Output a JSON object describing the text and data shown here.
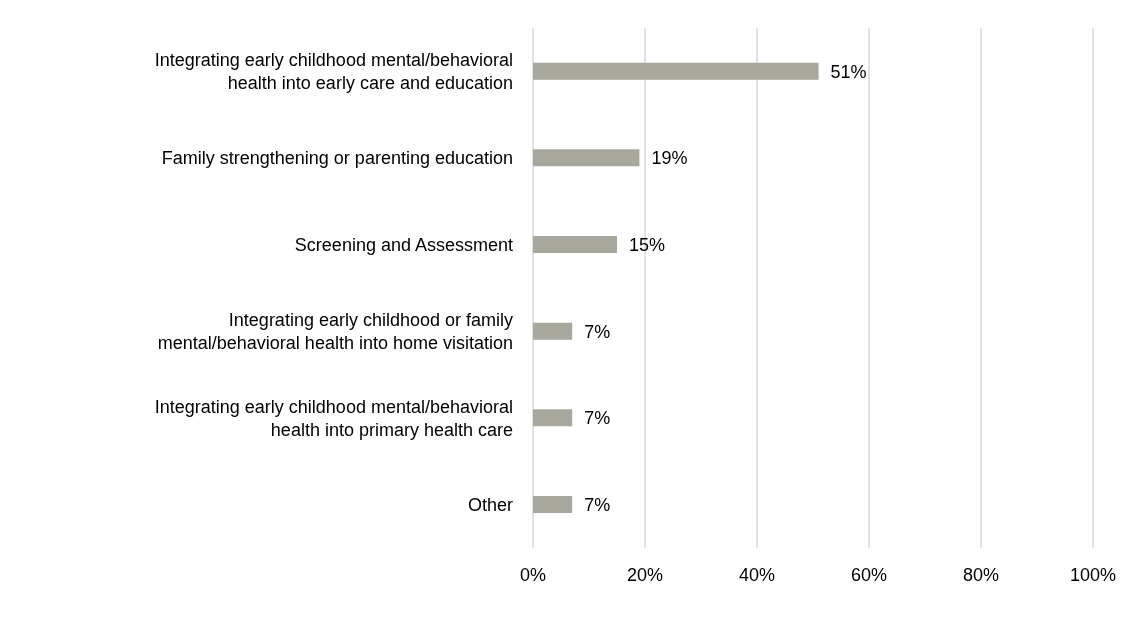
{
  "chart_data": {
    "type": "bar",
    "orientation": "horizontal",
    "categories": [
      "Integrating early childhood mental/behavioral health into early care and education",
      "Family strengthening or parenting education",
      "Screening and Assessment",
      "Integrating early childhood or family mental/behavioral health into home visitation",
      "Integrating early childhood mental/behavioral health into primary health care",
      "Other"
    ],
    "values": [
      51,
      19,
      15,
      7,
      7,
      7
    ],
    "value_labels": [
      "51%",
      "19%",
      "15%",
      "7%",
      "7%",
      "7%"
    ],
    "color": "#a9a89e",
    "xlim": [
      0,
      100
    ],
    "xticks": [
      {
        "value": 0,
        "label": "0%"
      },
      {
        "value": 20,
        "label": "20%"
      },
      {
        "value": 40,
        "label": "40%"
      },
      {
        "value": 60,
        "label": "60%"
      },
      {
        "value": 80,
        "label": "80%"
      },
      {
        "value": 100,
        "label": "100%"
      }
    ],
    "grid": "x"
  }
}
